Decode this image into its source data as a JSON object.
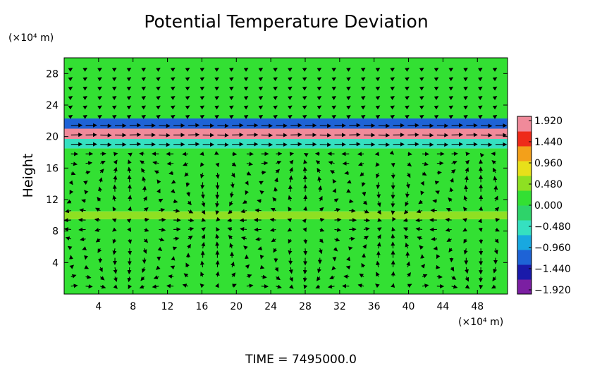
{
  "chart_data": {
    "type": "heatmap",
    "title": "Potential Temperature Deviation",
    "ylabel": "Height",
    "x_unit": "(×10⁴ m)",
    "y_unit": "(×10⁴ m)",
    "xlim": [
      0,
      51.5
    ],
    "ylim": [
      0,
      30
    ],
    "x_ticks": [
      "4",
      "8",
      "12",
      "16",
      "20",
      "24",
      "28",
      "32",
      "36",
      "40",
      "44",
      "48"
    ],
    "y_ticks": [
      "4",
      "8",
      "12",
      "16",
      "20",
      "24",
      "28"
    ],
    "colorbar": {
      "min": -1.92,
      "max": 1.92,
      "ticks": [
        "1.920",
        "1.440",
        "0.960",
        "0.480",
        "0.000",
        "−0.480",
        "−0.960",
        "−1.440",
        "−1.920"
      ],
      "colors": [
        "#7b1fa2",
        "#1a1aaa",
        "#1e63d6",
        "#18a8e0",
        "#35e0c0",
        "#2ed36a",
        "#33e033",
        "#8ee022",
        "#e8e01a",
        "#f3a01a",
        "#ee2a1a",
        "#f08a9a"
      ]
    },
    "field_bands": [
      {
        "y_from": 0,
        "y_to": 9.5,
        "value": 0.0
      },
      {
        "y_from": 9.5,
        "y_to": 10.5,
        "value": 0.4
      },
      {
        "y_from": 10.5,
        "y_to": 18.5,
        "value": 0.05
      },
      {
        "y_from": 18.5,
        "y_to": 19.7,
        "value": -0.6
      },
      {
        "y_from": 19.7,
        "y_to": 21.0,
        "value": 1.9
      },
      {
        "y_from": 21.0,
        "y_to": 22.3,
        "value": -1.2
      },
      {
        "y_from": 22.3,
        "y_to": 30,
        "value": 0.15
      }
    ],
    "vector_overlay": "wind arrows",
    "footer": "TIME  =  7495000.0"
  }
}
